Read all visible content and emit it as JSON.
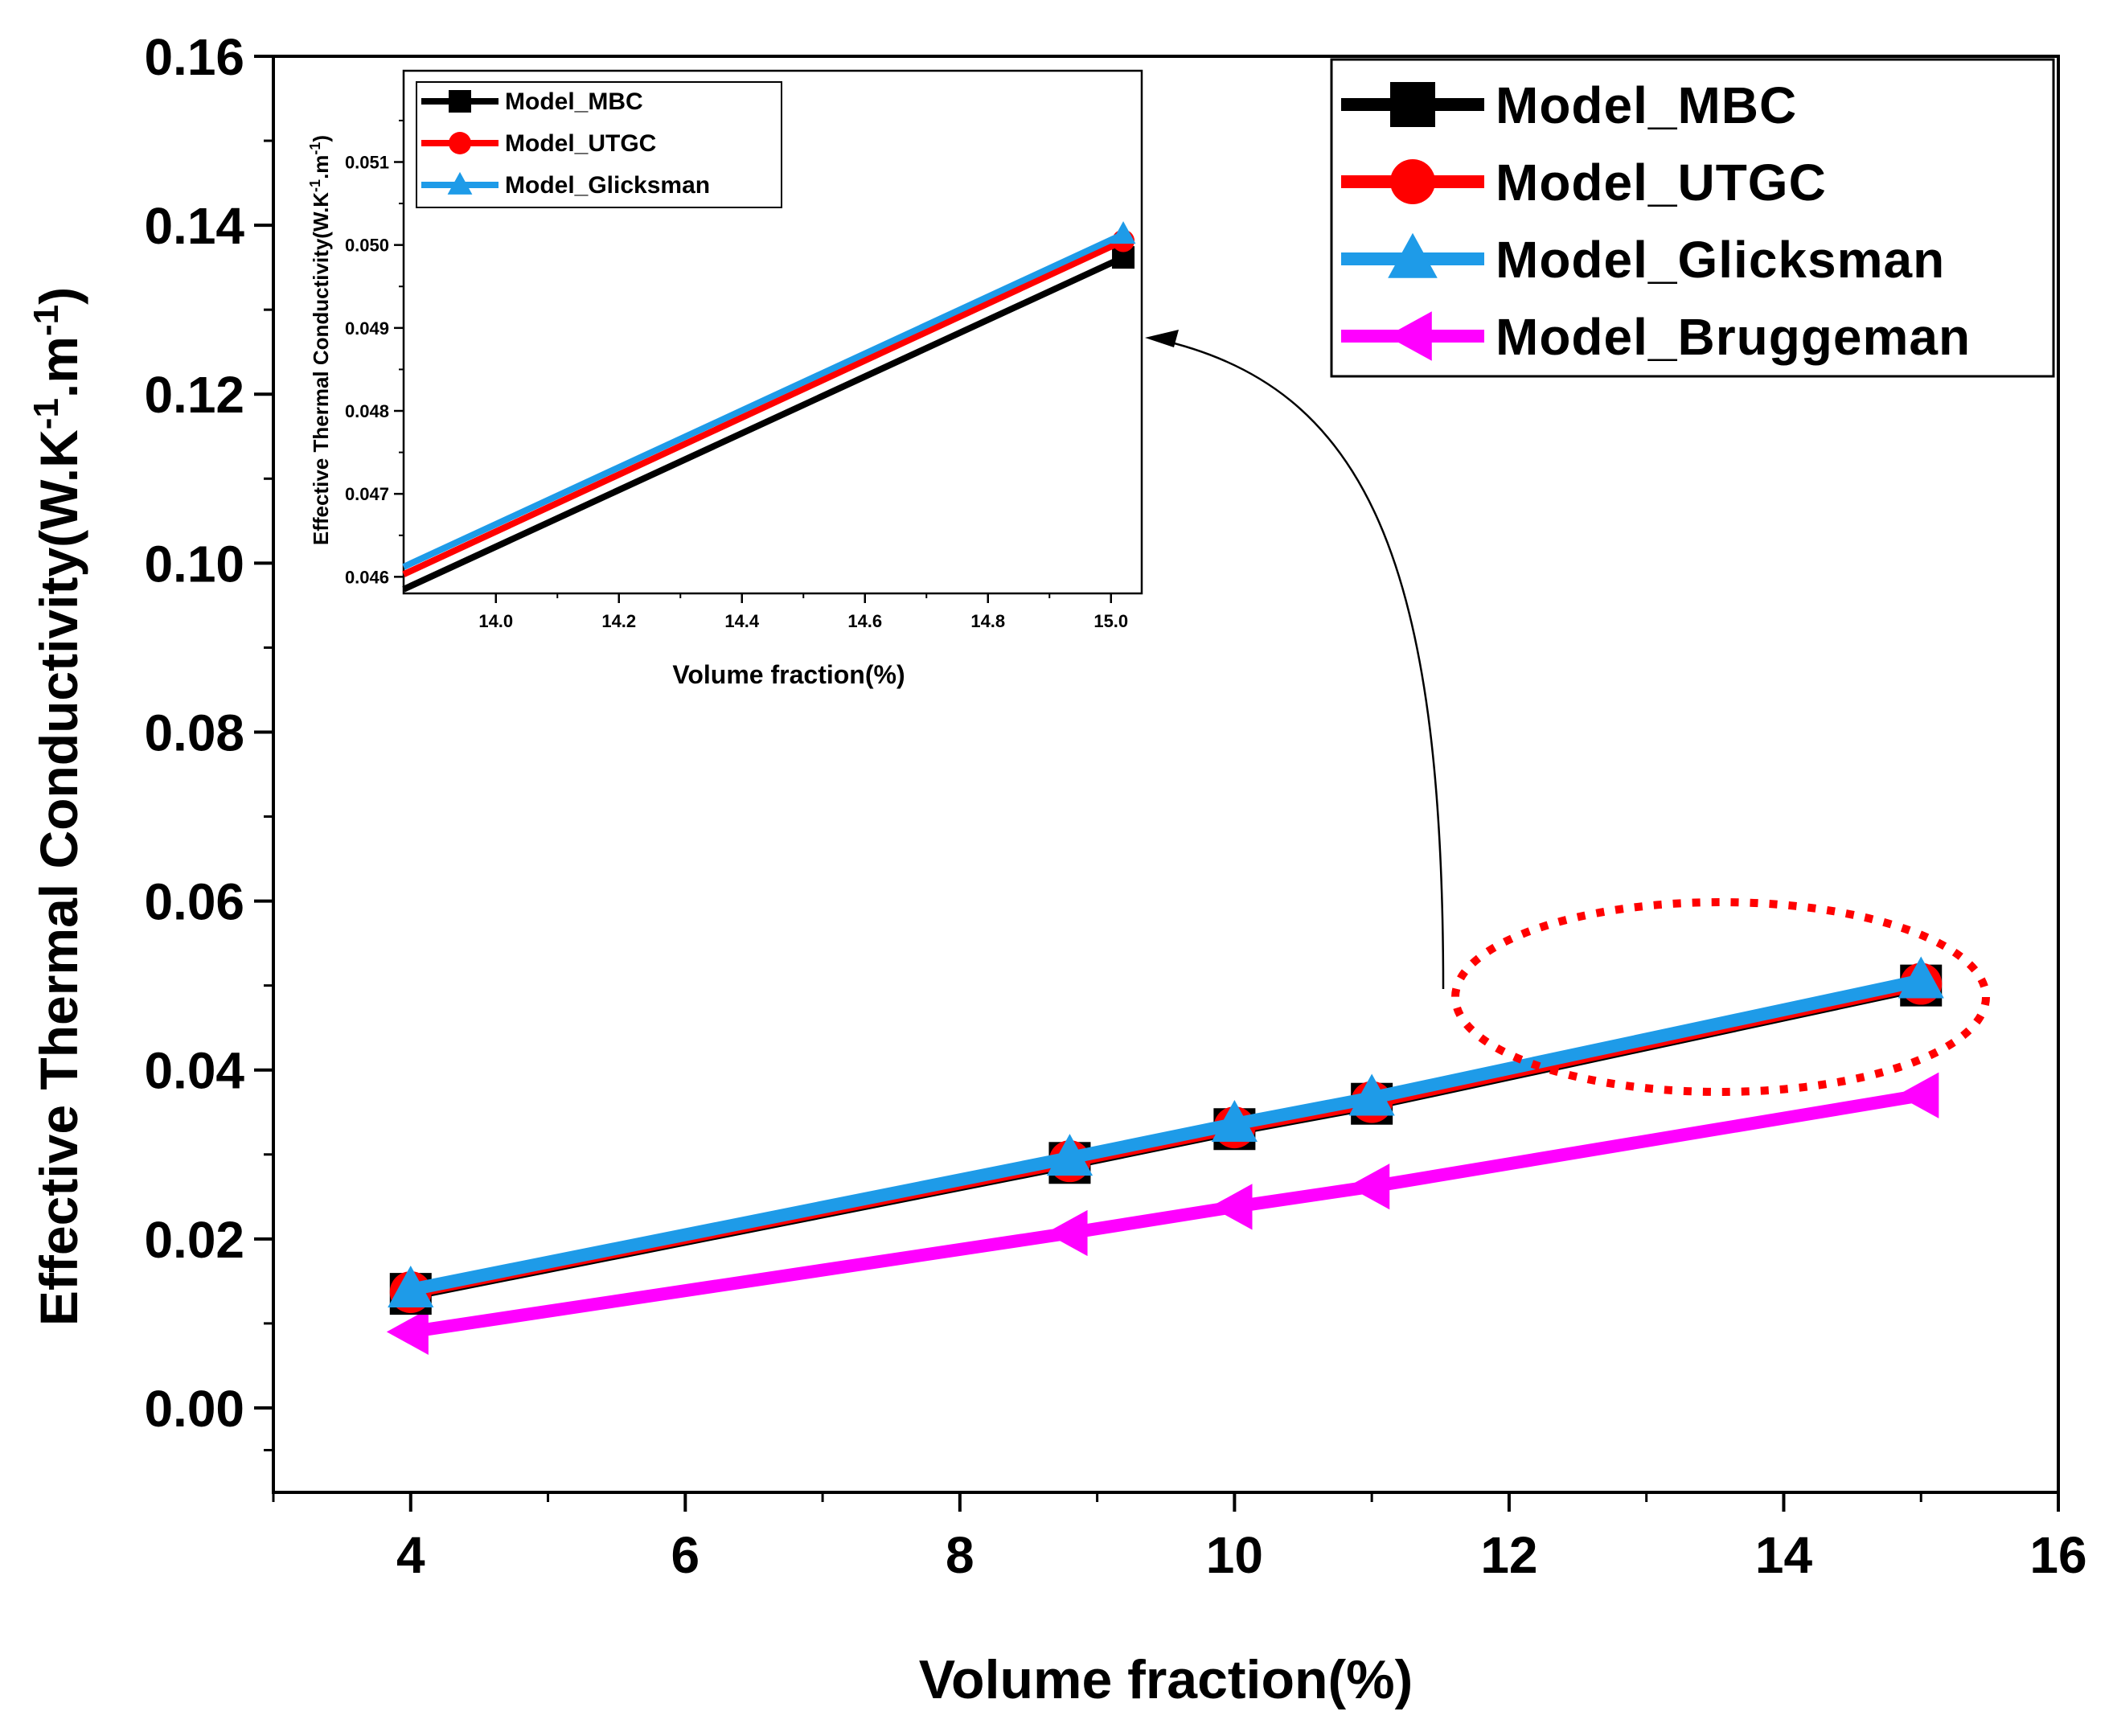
{
  "chart_data": [
    {
      "id": "main",
      "type": "line",
      "xlabel": "Volume fraction(%)",
      "ylabel": "Effective Thermal Conductivity(W.K",
      "ylabel_sup1": "-1",
      "ylabel_mid": ".m",
      "ylabel_sup2": "-1",
      "ylabel_end": ")",
      "xlim": [
        3,
        16
      ],
      "ylim": [
        -0.01,
        0.16
      ],
      "xticks": [
        4,
        6,
        8,
        10,
        12,
        14,
        16
      ],
      "yticks": [
        0.0,
        0.02,
        0.04,
        0.06,
        0.08,
        0.1,
        0.12,
        0.14,
        0.16
      ],
      "ytick_labels": [
        "0.00",
        "0.02",
        "0.04",
        "0.06",
        "0.08",
        "0.10",
        "0.12",
        "0.14",
        "0.16"
      ],
      "x": [
        4,
        8.8,
        10,
        11,
        15
      ],
      "legend_position": "top-right",
      "series": [
        {
          "name": "Model_MBC",
          "color": "#000000",
          "marker": "square",
          "values": [
            0.0135,
            0.029,
            0.033,
            0.036,
            0.05
          ]
        },
        {
          "name": "Model_UTGC",
          "color": "#ff0000",
          "marker": "circle",
          "values": [
            0.0137,
            0.0292,
            0.0332,
            0.0362,
            0.0502
          ]
        },
        {
          "name": "Model_Glicksman",
          "color": "#1e9be8",
          "marker": "triangle-up",
          "values": [
            0.014,
            0.0296,
            0.0336,
            0.0367,
            0.0506
          ]
        },
        {
          "name": "Model_Bruggeman",
          "color": "#ff00ff",
          "marker": "triangle-left",
          "values": [
            0.009,
            0.0207,
            0.0238,
            0.0262,
            0.037
          ]
        }
      ]
    },
    {
      "id": "inset",
      "type": "line",
      "xlabel": "Volume fraction(%)",
      "ylabel": "Effective Thermal Conductivity(W.K",
      "ylabel_sup1": "-1",
      "ylabel_mid": ".m",
      "ylabel_sup2": "-1",
      "ylabel_end": ")",
      "xlim": [
        13.85,
        15.05
      ],
      "ylim": [
        0.0458,
        0.0521
      ],
      "xticks": [
        14.0,
        14.2,
        14.4,
        14.6,
        14.8,
        15.0
      ],
      "xtick_labels": [
        "14.0",
        "14.2",
        "14.4",
        "14.6",
        "14.8",
        "15.0"
      ],
      "yticks": [
        0.046,
        0.047,
        0.048,
        0.049,
        0.05,
        0.051
      ],
      "ytick_labels": [
        "0.046",
        "0.047",
        "0.048",
        "0.049",
        "0.050",
        "0.051"
      ],
      "legend_position": "top-left",
      "series": [
        {
          "name": "Model_MBC",
          "color": "#000000",
          "marker": "square",
          "x": [
            13.85,
            15.02
          ],
          "values": [
            0.04585,
            0.04985
          ]
        },
        {
          "name": "Model_UTGC",
          "color": "#ff0000",
          "marker": "circle",
          "x": [
            13.85,
            15.02
          ],
          "values": [
            0.04603,
            0.05005
          ]
        },
        {
          "name": "Model_Glicksman",
          "color": "#1e9be8",
          "marker": "triangle-up",
          "x": [
            13.85,
            15.02
          ],
          "values": [
            0.04612,
            0.05013
          ]
        }
      ]
    }
  ]
}
